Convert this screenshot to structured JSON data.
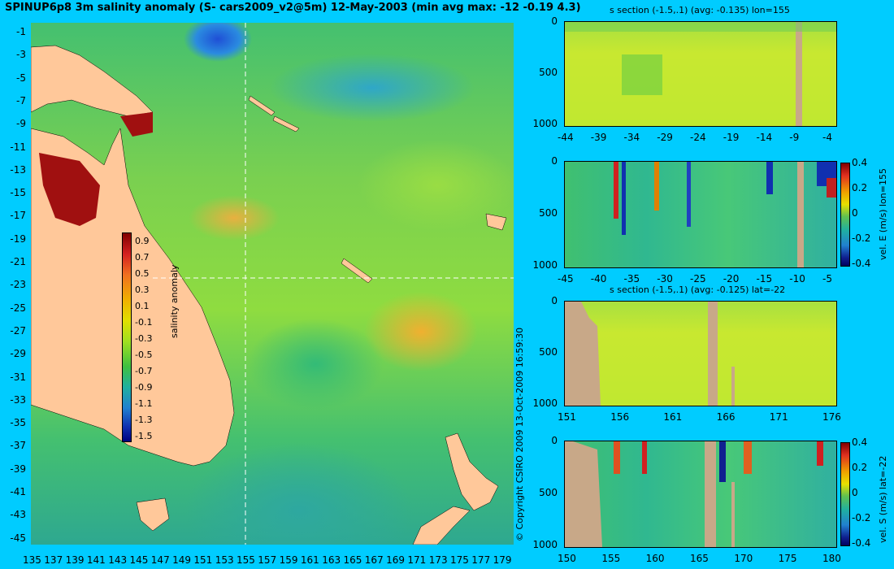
{
  "title": "SPINUP6p8 3m salinity anomaly (S- cars2009_v2@5m) 12-May-2003 (min avg max: -12 -0.19 4.3)",
  "map": {
    "y_ticks": [
      "-1",
      "-3",
      "-5",
      "-7",
      "-9",
      "-11",
      "-13",
      "-15",
      "-17",
      "-19",
      "-21",
      "-23",
      "-25",
      "-27",
      "-29",
      "-31",
      "-33",
      "-35",
      "-37",
      "-39",
      "-41",
      "-43",
      "-45"
    ],
    "x_ticks": [
      "135",
      "137",
      "139",
      "141",
      "143",
      "145",
      "147",
      "149",
      "151",
      "153",
      "155",
      "157",
      "159",
      "161",
      "163",
      "165",
      "167",
      "169",
      "171",
      "173",
      "175",
      "177",
      "179"
    ],
    "colorbar_ticks": [
      "0.9",
      "0.7",
      "0.5",
      "0.3",
      "0.1",
      "-0.1",
      "-0.3",
      "-0.5",
      "-0.7",
      "-0.9",
      "-1.1",
      "-1.3",
      "-1.5"
    ],
    "colorbar_label": "salinity anomaly",
    "copyright": "© Copyright CSIRO 2009   13-Oct-2009 16:59:30"
  },
  "panels": {
    "p1": {
      "title": "s section (-1.5,.1) (avg: -0.135) lon=155",
      "y_ticks": [
        "0",
        "500",
        "1000"
      ],
      "x_ticks": [
        "-44",
        "-39",
        "-34",
        "-29",
        "-24",
        "-19",
        "-14",
        "-9",
        "-4"
      ]
    },
    "p2": {
      "y_ticks": [
        "0",
        "500",
        "1000"
      ],
      "x_ticks": [
        "-45",
        "-40",
        "-35",
        "-30",
        "-25",
        "-20",
        "-15",
        "-10",
        "-5"
      ],
      "cb_ticks": [
        "0.4",
        "0.2",
        "0",
        "-0.2",
        "-0.4"
      ],
      "cb_label": "vel. E (m/s) lon=155"
    },
    "p3": {
      "title": "s section (-1.5,.1) (avg: -0.125) lat=-22",
      "y_ticks": [
        "0",
        "500",
        "1000"
      ],
      "x_ticks": [
        "151",
        "156",
        "161",
        "166",
        "171",
        "176"
      ]
    },
    "p4": {
      "y_ticks": [
        "0",
        "500",
        "1000"
      ],
      "x_ticks": [
        "150",
        "155",
        "160",
        "165",
        "170",
        "175",
        "180"
      ],
      "cb_ticks": [
        "0.4",
        "0.2",
        "0",
        "-0.2",
        "-0.4"
      ],
      "cb_label": "vel. S (m/s) lat=-22"
    }
  },
  "colors": {
    "background": "#00ccff",
    "land": "#ffc89a",
    "section_land": "#c8a888"
  }
}
